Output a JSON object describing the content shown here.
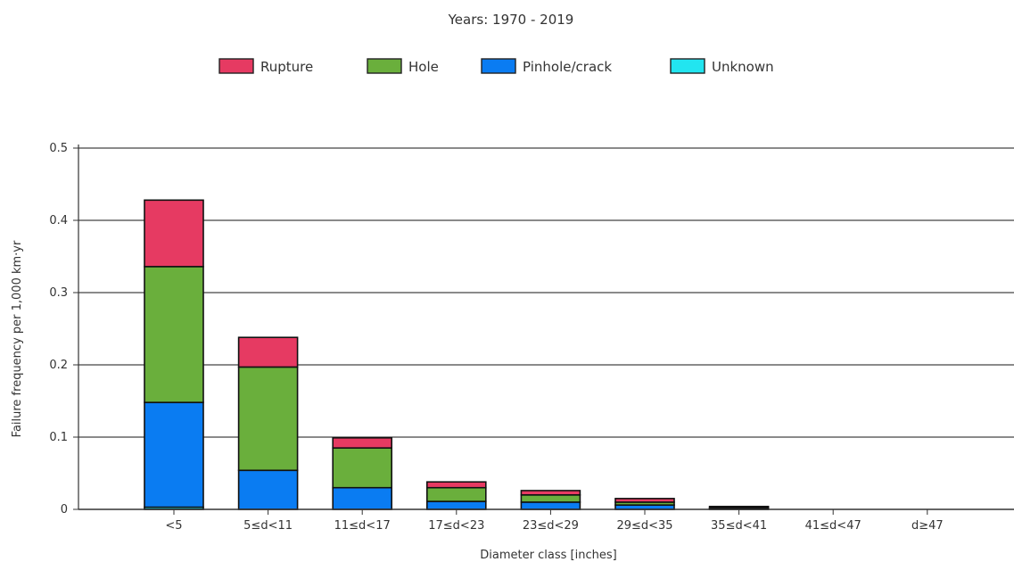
{
  "chart_data": {
    "type": "bar",
    "stacked": true,
    "title": "Years: 1970 - 2019",
    "xlabel": "Diameter class [inches]",
    "ylabel": "Failure frequency per 1,000 km·yr",
    "ylim": [
      0,
      0.5
    ],
    "yticks": [
      "0",
      "0.1",
      "0.2",
      "0.3",
      "0.4",
      "0.5"
    ],
    "grid": true,
    "legend_position": "top-center",
    "categories": [
      "<5",
      "5≤d<11",
      "11≤d<17",
      "17≤d<23",
      "23≤d<29",
      "29≤d<35",
      "35≤d<41",
      "41≤d<47",
      "d≥47"
    ],
    "series": [
      {
        "name": "Unknown",
        "color": "#22e5f0",
        "values": [
          0.003,
          0,
          0,
          0,
          0,
          0,
          0,
          0,
          0
        ]
      },
      {
        "name": "Pinhole/crack",
        "color": "#0a7cf2",
        "values": [
          0.145,
          0.054,
          0.03,
          0.011,
          0.01,
          0.006,
          0.001,
          0,
          0
        ]
      },
      {
        "name": "Hole",
        "color": "#6aaf3c",
        "values": [
          0.188,
          0.143,
          0.055,
          0.019,
          0.01,
          0.004,
          0.001,
          0,
          0
        ]
      },
      {
        "name": "Rupture",
        "color": "#e63a62",
        "values": [
          0.092,
          0.041,
          0.014,
          0.008,
          0.006,
          0.005,
          0.002,
          0,
          0
        ]
      }
    ],
    "legend_order": [
      "Rupture",
      "Hole",
      "Pinhole/crack",
      "Unknown"
    ]
  }
}
